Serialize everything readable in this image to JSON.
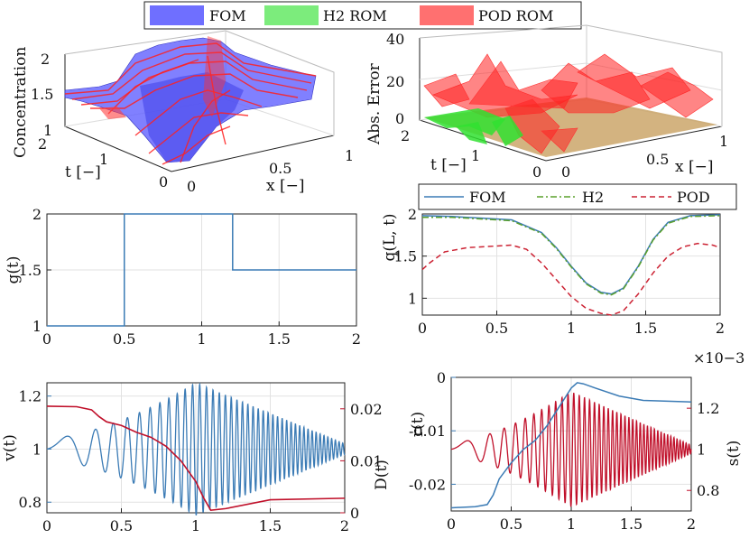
{
  "chart_data": [
    {
      "id": "concentration_3d",
      "type": "surface3d",
      "zlabel": "Concentration",
      "ylabel": "t [−]",
      "xlabel": "x [−]",
      "zticks": [
        "1",
        "1.5",
        "2"
      ],
      "yticks": [
        "0",
        "1",
        "2"
      ],
      "xticks": [
        "0",
        "0.5",
        "1"
      ],
      "series": [
        {
          "name": "FOM",
          "color": "#5a5aff"
        },
        {
          "name": "H2 ROM",
          "color": "#60e060"
        },
        {
          "name": "POD ROM",
          "color": "#ff5a5a"
        }
      ]
    },
    {
      "id": "abs_error_3d",
      "type": "surface3d",
      "zlabel": "Abs. Error",
      "ylabel": "t [−]",
      "xlabel": "x [−]",
      "zticks": [
        "0",
        "20",
        "40"
      ],
      "yticks": [
        "0",
        "1",
        "2"
      ],
      "xticks": [
        "0",
        "0.5",
        "1"
      ]
    },
    {
      "id": "input_g",
      "type": "line",
      "ylabel": "g(t)",
      "xlim": [
        0,
        2
      ],
      "ylim": [
        1,
        2
      ],
      "xticks": [
        "0",
        "0.5",
        "1",
        "1.5",
        "2"
      ],
      "yticks": [
        "1",
        "1.5",
        "2"
      ],
      "grid": true,
      "series": [
        {
          "name": "g",
          "color": "#3b7bb5",
          "x": [
            0,
            0.5,
            0.5,
            1.2,
            1.2,
            2
          ],
          "y": [
            1,
            1,
            2,
            2,
            1.5,
            1.5
          ]
        }
      ]
    },
    {
      "id": "output_q",
      "type": "line",
      "ylabel": "q(L, t)",
      "xlim": [
        0,
        2
      ],
      "ylim": [
        0.8,
        2
      ],
      "xticks": [
        "0",
        "0.5",
        "1",
        "1.5",
        "2"
      ],
      "yticks": [
        "1",
        "1.5",
        "2"
      ],
      "grid": true,
      "legend": "top",
      "series": [
        {
          "name": "FOM",
          "color": "#3b7bb5",
          "style": "solid",
          "x": [
            0,
            0.2,
            0.4,
            0.6,
            0.8,
            0.9,
            1.0,
            1.1,
            1.2,
            1.27,
            1.35,
            1.45,
            1.55,
            1.65,
            1.8,
            2.0
          ],
          "y": [
            1.98,
            1.97,
            1.95,
            1.93,
            1.78,
            1.6,
            1.38,
            1.18,
            1.07,
            1.05,
            1.12,
            1.38,
            1.7,
            1.9,
            1.98,
            1.99
          ]
        },
        {
          "name": "H2",
          "color": "#5aa02c",
          "style": "dashdot",
          "x": [
            0,
            0.2,
            0.4,
            0.6,
            0.8,
            0.9,
            1.0,
            1.1,
            1.2,
            1.27,
            1.35,
            1.45,
            1.55,
            1.65,
            1.8,
            2.0
          ],
          "y": [
            1.96,
            1.96,
            1.94,
            1.92,
            1.77,
            1.59,
            1.37,
            1.17,
            1.06,
            1.04,
            1.11,
            1.37,
            1.69,
            1.89,
            1.97,
            1.98
          ]
        },
        {
          "name": "POD",
          "color": "#cc2233",
          "style": "dashed",
          "x": [
            0,
            0.05,
            0.15,
            0.3,
            0.5,
            0.6,
            0.7,
            0.8,
            0.9,
            1.0,
            1.1,
            1.2,
            1.27,
            1.35,
            1.45,
            1.55,
            1.65,
            1.75,
            1.85,
            1.95,
            2.0
          ],
          "y": [
            1.34,
            1.42,
            1.55,
            1.6,
            1.62,
            1.63,
            1.58,
            1.42,
            1.22,
            1.02,
            0.88,
            0.82,
            0.8,
            0.85,
            1.05,
            1.3,
            1.5,
            1.61,
            1.65,
            1.63,
            1.6
          ]
        }
      ],
      "legend_labels": [
        "FOM",
        "H2",
        "POD"
      ]
    },
    {
      "id": "v_D",
      "type": "line_dual",
      "left_ylabel": "v(t)",
      "right_ylabel": "D(t)",
      "xlim": [
        0,
        2
      ],
      "left_ylim": [
        0.76,
        1.25
      ],
      "right_ylim": [
        0,
        0.025
      ],
      "xticks": [
        "0",
        "0.5",
        "1",
        "1.5",
        "2"
      ],
      "left_yticks": [
        "0.8",
        "1",
        "1.2"
      ],
      "right_yticks": [
        "0",
        "0.01",
        "0.02"
      ],
      "left_color": "#3b7bb5",
      "right_color": "#c0102a",
      "series": [
        {
          "name": "v",
          "axis": "left",
          "description": "chirp oscillation about 1, amplitude grows to ~0.25 at t=1 then decays to ~0.02 at t=2"
        },
        {
          "name": "D",
          "axis": "right",
          "x": [
            0,
            0.2,
            0.3,
            0.35,
            0.4,
            0.5,
            0.6,
            0.7,
            0.8,
            0.9,
            1.0,
            1.05,
            1.1,
            1.2,
            1.5,
            2.0
          ],
          "y": [
            0.0205,
            0.0204,
            0.0198,
            0.0185,
            0.0175,
            0.0168,
            0.0155,
            0.0145,
            0.0128,
            0.01,
            0.006,
            0.003,
            0.0005,
            0.0008,
            0.0025,
            0.0028
          ]
        }
      ]
    },
    {
      "id": "r_s",
      "type": "line_dual",
      "left_ylabel": "r(t)",
      "right_ylabel": "s(t)",
      "right_exponent": "×10−3",
      "xlim": [
        0,
        2
      ],
      "left_ylim": [
        -0.025,
        0
      ],
      "right_ylim": [
        0.7,
        1.35
      ],
      "xticks": [
        "0",
        "0.5",
        "1",
        "1.5",
        "2"
      ],
      "left_yticks": [
        "-0.02",
        "-0.01",
        "0"
      ],
      "right_yticks": [
        "0.8",
        "1",
        "1.2"
      ],
      "left_color": "#3b7bb5",
      "right_color": "#c0102a",
      "series": [
        {
          "name": "r",
          "axis": "left",
          "x": [
            0,
            0.2,
            0.3,
            0.35,
            0.4,
            0.5,
            0.6,
            0.7,
            0.8,
            0.9,
            1.0,
            1.05,
            1.1,
            1.2,
            1.4,
            1.6,
            2.0
          ],
          "y": [
            -0.0244,
            -0.0242,
            -0.0238,
            -0.022,
            -0.019,
            -0.016,
            -0.0135,
            -0.0118,
            -0.009,
            -0.0055,
            -0.002,
            -0.001,
            -0.0012,
            -0.002,
            -0.0035,
            -0.0043,
            -0.0046
          ]
        },
        {
          "name": "s",
          "axis": "right",
          "description": "chirp oscillation about 1.0e-3, amplitude grows to ~0.25e-3 at t=1 then decays to ~0.02e-3 at t=2"
        }
      ]
    }
  ],
  "legend_top": [
    "FOM",
    "H2 ROM",
    "POD ROM"
  ]
}
